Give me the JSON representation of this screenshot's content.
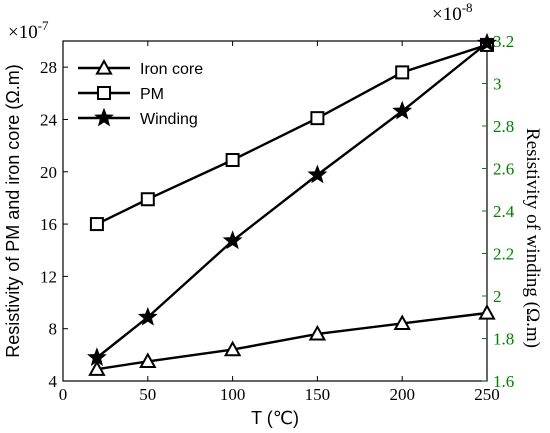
{
  "chart_data": {
    "type": "line",
    "x_label": "T (℃)",
    "y_left_label": "Resistivity of PM and iron core (Ω.m)",
    "y_right_label": "Resistivity of winding (Ω.m)",
    "left_multiplier": "×10",
    "left_exponent": "-7",
    "right_multiplier": "×10",
    "right_exponent": "-8",
    "x_ticks": [
      0,
      50,
      100,
      150,
      200,
      250
    ],
    "y_left_ticks": [
      4,
      8,
      12,
      16,
      20,
      24,
      28
    ],
    "y_right_ticks": [
      1.6,
      1.8,
      2,
      2.2,
      2.4,
      2.6,
      2.8,
      3,
      3.2
    ],
    "xlim": [
      0,
      250
    ],
    "ylim_left": [
      4,
      30
    ],
    "ylim_right": [
      1.6,
      3.2
    ],
    "right_axis_color": "#008000",
    "legend_position": "top-left",
    "series": [
      {
        "name": "Iron core",
        "marker": "triangle",
        "axis": "left",
        "x": [
          20,
          50,
          100,
          150,
          200,
          250
        ],
        "y": [
          4.9,
          5.5,
          6.4,
          7.6,
          8.4,
          9.2
        ]
      },
      {
        "name": "PM",
        "marker": "square",
        "axis": "left",
        "x": [
          20,
          50,
          100,
          150,
          200,
          250
        ],
        "y": [
          16.0,
          17.9,
          20.9,
          24.1,
          27.6,
          29.7
        ]
      },
      {
        "name": "Winding",
        "marker": "star",
        "axis": "right",
        "x": [
          20,
          50,
          100,
          150,
          200,
          250
        ],
        "y": [
          1.71,
          1.9,
          2.26,
          2.57,
          2.87,
          3.19
        ]
      }
    ]
  }
}
